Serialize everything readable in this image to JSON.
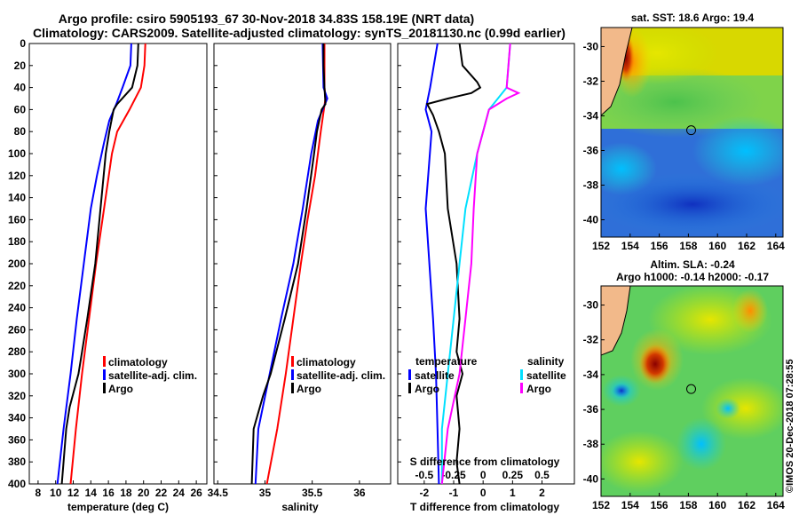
{
  "header": {
    "line1": "Argo profile: csiro 5905193_67 30-Nov-2018 34.83S 158.19E (NRT data)",
    "line2": "Climatology: CARS2009. Satellite-adjusted climatology: synTS_20181130.nc (0.99d earlier)"
  },
  "colors": {
    "climatology": "#ff0000",
    "satellite": "#0000ff",
    "argo": "#000000",
    "sal_satellite": "#00e0ff",
    "sal_argo": "#ff00ff"
  },
  "chart_data": [
    {
      "type": "line",
      "name": "temperature",
      "xlabel": "temperature (deg C)",
      "ylabel": "",
      "xlim": [
        7,
        27.2
      ],
      "ylim": [
        400,
        0
      ],
      "xticks": [
        "8",
        "10",
        "12",
        "14",
        "16",
        "18",
        "20",
        "22",
        "24",
        "26"
      ],
      "yticks": [
        "0",
        "20",
        "40",
        "60",
        "80",
        "100",
        "120",
        "140",
        "160",
        "180",
        "200",
        "220",
        "240",
        "260",
        "280",
        "300",
        "320",
        "340",
        "360",
        "380",
        "400"
      ],
      "legend": [
        "climatology",
        "satellite-adj. clim.",
        "Argo"
      ],
      "series": [
        {
          "name": "climatology",
          "depth": [
            0,
            20,
            40,
            60,
            80,
            100,
            150,
            200,
            250,
            300,
            350,
            400
          ],
          "values": [
            20.2,
            20.1,
            19.7,
            18.4,
            17.0,
            16.4,
            15.5,
            14.6,
            13.8,
            13.0,
            12.3,
            11.7
          ]
        },
        {
          "name": "satellite-adj. clim.",
          "depth": [
            0,
            20,
            40,
            55,
            70,
            90,
            120,
            150,
            200,
            250,
            300,
            350,
            400
          ],
          "values": [
            18.6,
            18.5,
            17.6,
            16.9,
            16.1,
            15.5,
            14.7,
            14.0,
            13.2,
            12.4,
            11.7,
            10.9,
            10.2
          ]
        },
        {
          "name": "Argo",
          "depth": [
            0,
            20,
            40,
            55,
            60,
            80,
            100,
            150,
            200,
            250,
            280,
            300,
            330,
            350,
            380,
            400
          ],
          "values": [
            19.4,
            19.3,
            18.7,
            17.0,
            16.6,
            16.1,
            15.7,
            15.1,
            14.5,
            13.6,
            13.0,
            12.6,
            11.6,
            11.2,
            10.9,
            10.7
          ]
        }
      ]
    },
    {
      "type": "line",
      "name": "salinity",
      "xlabel": "salinity",
      "ylabel": "",
      "xlim": [
        34.46,
        36.33
      ],
      "ylim": [
        400,
        0
      ],
      "xticks": [
        "34.5",
        "35",
        "35.5",
        "36"
      ],
      "legend": [
        "climatology",
        "satellite-adj. clim.",
        "Argo"
      ],
      "series": [
        {
          "name": "climatology",
          "depth": [
            0,
            40,
            50,
            80,
            120,
            160,
            200,
            250,
            300,
            350,
            400
          ],
          "values": [
            35.63,
            35.63,
            35.64,
            35.59,
            35.53,
            35.45,
            35.38,
            35.3,
            35.22,
            35.13,
            35.02
          ]
        },
        {
          "name": "satellite-adj. clim.",
          "depth": [
            0,
            40,
            50,
            70,
            100,
            150,
            200,
            250,
            300,
            350,
            400
          ],
          "values": [
            35.61,
            35.62,
            35.66,
            35.56,
            35.49,
            35.4,
            35.3,
            35.17,
            35.05,
            34.93,
            34.9
          ]
        },
        {
          "name": "Argo",
          "depth": [
            0,
            20,
            40,
            55,
            60,
            80,
            100,
            150,
            200,
            250,
            280,
            300,
            320,
            350,
            400
          ],
          "values": [
            35.62,
            35.62,
            35.63,
            35.64,
            35.6,
            35.55,
            35.52,
            35.44,
            35.35,
            35.21,
            35.12,
            35.06,
            34.98,
            34.88,
            34.86
          ]
        }
      ]
    },
    {
      "type": "line",
      "name": "difference",
      "xlabel": "T difference from climatology",
      "xlabel2": "S difference from climatology",
      "xlim": [
        -2.9,
        3.1
      ],
      "ylim": [
        400,
        0
      ],
      "xticks": [
        "-2",
        "-1",
        "0",
        "1",
        "2"
      ],
      "sticks": [
        "-0.5",
        "-0.25",
        "0",
        "0.25",
        "0.5"
      ],
      "legend_titles": [
        "temperature",
        "salinity"
      ],
      "legend": [
        "satellite",
        "Argo",
        "satellite",
        "Argo"
      ],
      "series": [
        {
          "name": "T satellite",
          "depth": [
            0,
            40,
            60,
            80,
            150,
            250,
            300,
            350,
            400
          ],
          "values": [
            -1.55,
            -1.8,
            -1.95,
            -1.75,
            -1.95,
            -1.7,
            -1.6,
            -1.55,
            -1.5
          ]
        },
        {
          "name": "T Argo",
          "depth": [
            0,
            20,
            35,
            40,
            45,
            50,
            55,
            65,
            80,
            100,
            150,
            200,
            250,
            280,
            300,
            320,
            350,
            380,
            400
          ],
          "values": [
            -0.8,
            -0.7,
            -0.2,
            -0.1,
            -0.4,
            -1.2,
            -1.9,
            -1.7,
            -1.5,
            -1.3,
            -1.2,
            -0.9,
            -0.8,
            -0.9,
            -0.7,
            -0.9,
            -0.8,
            -0.9,
            -0.8
          ]
        },
        {
          "name": "S satellite",
          "depth": [
            0,
            40,
            60,
            100,
            150,
            200,
            300,
            350,
            400
          ],
          "values": [
            0.23,
            0.2,
            0.05,
            -0.05,
            -0.15,
            -0.2,
            -0.3,
            -0.35,
            -0.35
          ]
        },
        {
          "name": "S Argo",
          "depth": [
            0,
            40,
            45,
            50,
            60,
            80,
            100,
            150,
            200,
            250,
            300,
            350,
            400
          ],
          "values": [
            0.23,
            0.2,
            0.3,
            0.2,
            0.05,
            0.0,
            -0.05,
            -0.08,
            -0.1,
            -0.15,
            -0.2,
            -0.3,
            -0.35
          ]
        }
      ]
    },
    {
      "type": "heatmap",
      "name": "sst_map",
      "title": "sat. SST: 18.6 Argo: 19.4",
      "xticks": [
        "152",
        "154",
        "156",
        "158",
        "160",
        "162",
        "164"
      ],
      "yticks": [
        "-30",
        "-32",
        "-34",
        "-36",
        "-38",
        "-40"
      ],
      "xlim": [
        152,
        164.5
      ],
      "ylim": [
        -41,
        -28.9
      ],
      "marker": {
        "lon": 158.19,
        "lat": -34.83
      }
    },
    {
      "type": "heatmap",
      "name": "sla_map",
      "title": "Altim. SLA: -0.24",
      "title2": "Argo h1000: -0.14 h2000: -0.17",
      "xticks": [
        "152",
        "154",
        "156",
        "158",
        "160",
        "162",
        "164"
      ],
      "yticks": [
        "-30",
        "-32",
        "-34",
        "-36",
        "-38",
        "-40"
      ],
      "xlim": [
        152,
        164.5
      ],
      "ylim": [
        -41,
        -28.9
      ],
      "marker": {
        "lon": 158.19,
        "lat": -34.83
      }
    }
  ],
  "credit": "©IMOS 20-Dec-2018 07:28:55"
}
